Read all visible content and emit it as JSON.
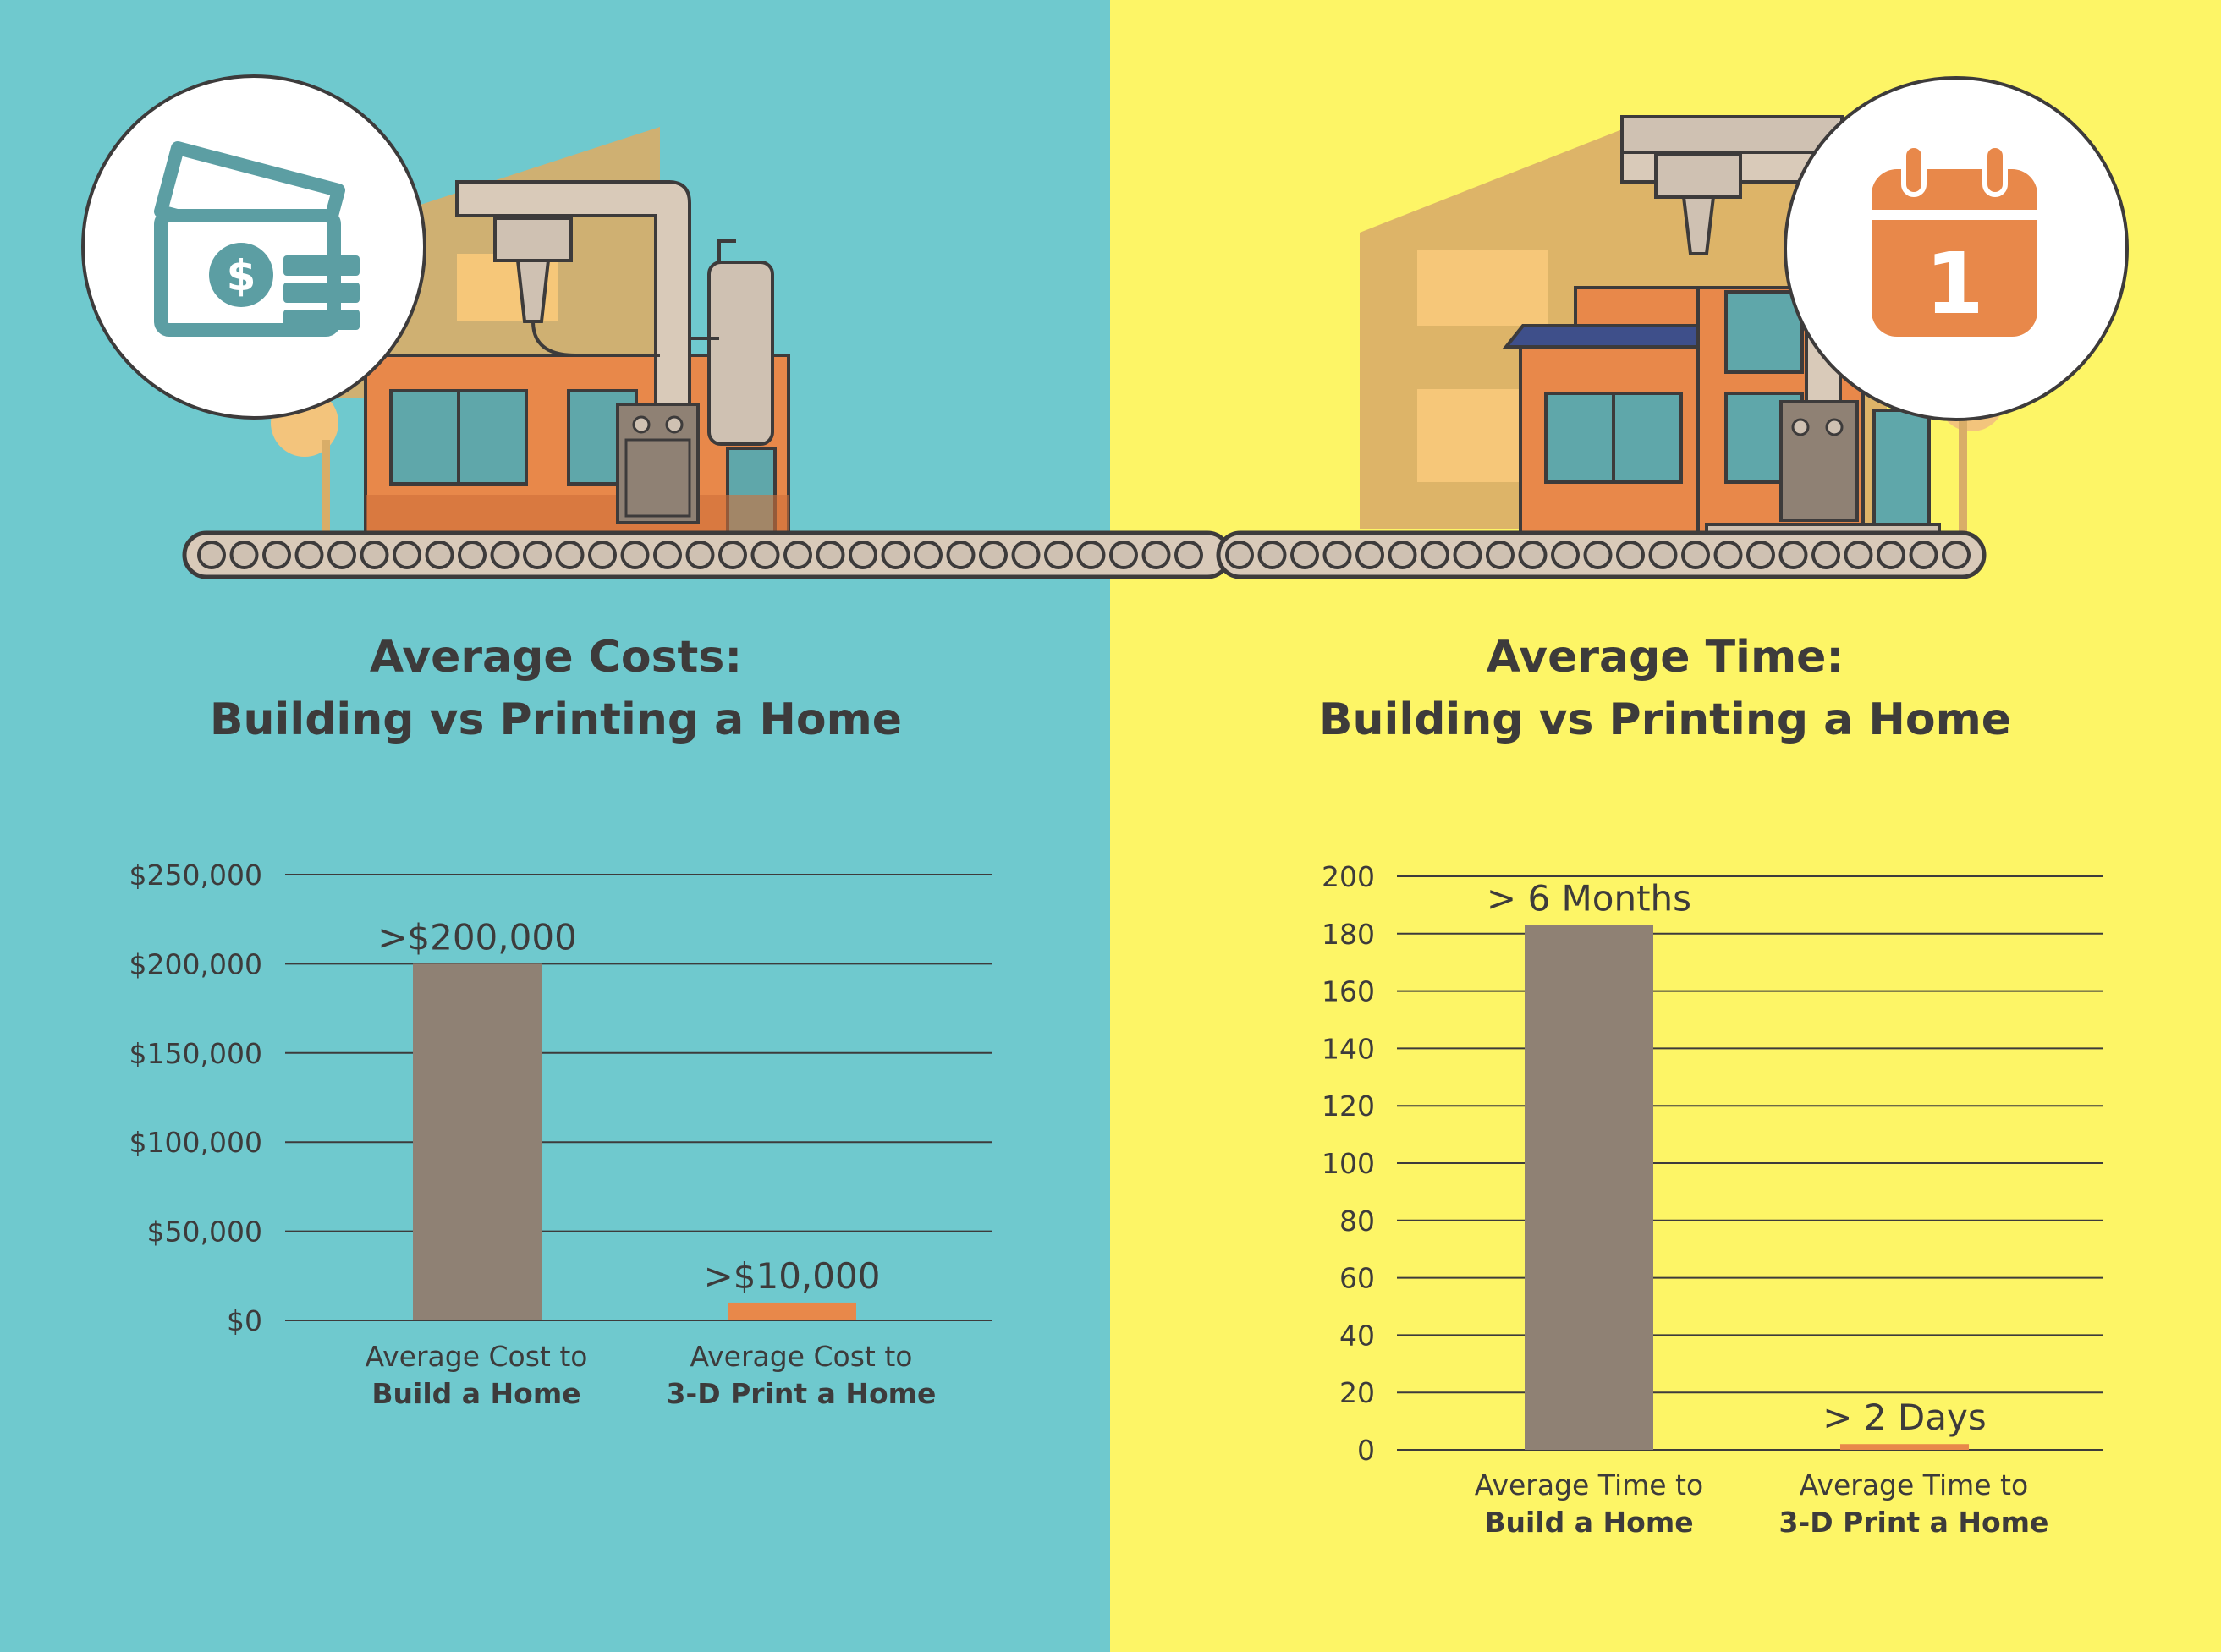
{
  "colors": {
    "left_bg": "#6fc9ce",
    "right_bg": "#fdf566",
    "build_bar": "#8f8174",
    "print_bar": "#e8884a",
    "text": "#3d3b3b",
    "icon_teal": "#5c9ea3",
    "icon_orange": "#e8884a"
  },
  "icons": {
    "left_badge": "money-icon",
    "right_badge": "calendar-icon",
    "calendar_number": "1"
  },
  "chart_data": [
    {
      "type": "bar",
      "title_line1": "Average Costs:",
      "title_line2": "Building vs Printing a Home",
      "ylim": [
        0,
        250000
      ],
      "yticks": [
        0,
        50000,
        100000,
        150000,
        200000,
        250000
      ],
      "ytick_labels": [
        "$0",
        "$50,000",
        "$100,000",
        "$150,000",
        "$200,000",
        "$250,000"
      ],
      "categories": [
        {
          "regular": "Average Cost to",
          "bold": "Build a Home"
        },
        {
          "regular": "Average Cost to",
          "bold": "3-D Print a Home"
        }
      ],
      "values": [
        200000,
        10000
      ],
      "data_labels": [
        ">$200,000",
        ">$10,000"
      ],
      "grid": true,
      "legend": "none"
    },
    {
      "type": "bar",
      "title_line1": "Average Time:",
      "title_line2": "Building vs Printing a Home",
      "ylim": [
        0,
        200
      ],
      "yticks": [
        0,
        20,
        40,
        60,
        80,
        100,
        120,
        140,
        160,
        180,
        200
      ],
      "ytick_labels": [
        "0",
        "20",
        "40",
        "60",
        "80",
        "100",
        "120",
        "140",
        "160",
        "180",
        "200"
      ],
      "categories": [
        {
          "regular": "Average Time to",
          "bold": "Build a Home"
        },
        {
          "regular": "Average Time to",
          "bold": "3-D Print a Home"
        }
      ],
      "values": [
        183,
        2
      ],
      "data_labels": [
        "> 6 Months",
        "> 2 Days"
      ],
      "grid": true,
      "legend": "none"
    }
  ]
}
